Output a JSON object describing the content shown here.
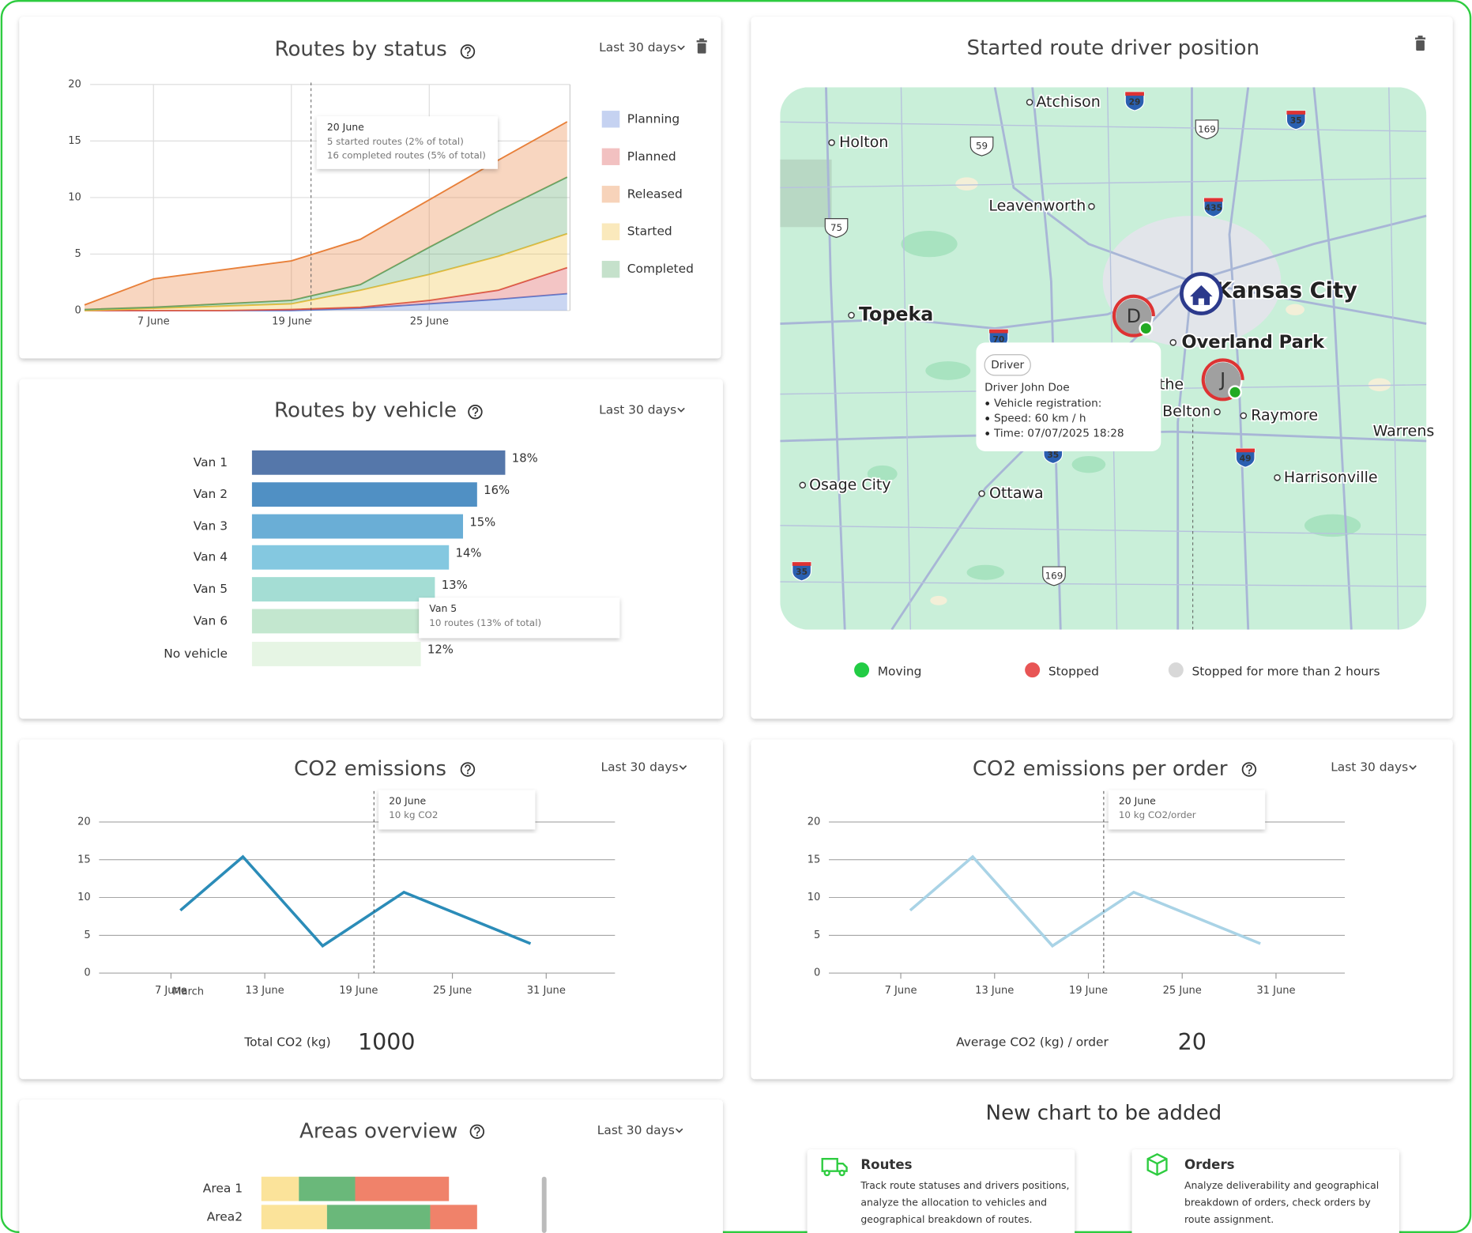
{
  "routes_by_status": {
    "title": "Routes by status",
    "period": "Last 30 days",
    "chart": {
      "type": "area",
      "stacked": true,
      "categories": [
        null,
        "7 June",
        null,
        "19 June",
        null,
        "25 June",
        null,
        null
      ],
      "series": [
        {
          "name": "Planning",
          "color": "#5a7fd6",
          "values": [
            0,
            0,
            0,
            0,
            0.2,
            0.6,
            1.0,
            1.5
          ]
        },
        {
          "name": "Planned",
          "color": "#d94c4c",
          "values": [
            0,
            0,
            0,
            0.1,
            0.1,
            0.3,
            0.8,
            2.3
          ]
        },
        {
          "name": "Released",
          "color": "#e8803a",
          "values": [
            0.4,
            2.5,
            3.0,
            3.5,
            4.0,
            4.2,
            4.5,
            4.9
          ]
        },
        {
          "name": "Started",
          "color": "#f0c040",
          "values": [
            0,
            0.2,
            0.4,
            0.5,
            1.5,
            2.3,
            3.0,
            3.0
          ]
        },
        {
          "name": "Completed",
          "color": "#5aa86a",
          "values": [
            0.1,
            0.1,
            0.2,
            0.3,
            0.5,
            2.4,
            4.0,
            5.0
          ]
        }
      ],
      "ylim": [
        0,
        20
      ],
      "yticks": [
        0,
        5,
        10,
        15,
        20
      ],
      "grid": true,
      "tooltip": {
        "title": "20 June",
        "lines": [
          "5 started routes (2% of total)",
          "16 completed routes (5% of total)"
        ]
      }
    }
  },
  "routes_by_vehicle": {
    "title": "Routes by vehicle",
    "period": "Last 30 days",
    "chart": {
      "type": "hbar",
      "categories": [
        "Van 1",
        "Van 2",
        "Van 3",
        "Van 4",
        "Van 5",
        "Van 6",
        "No vehicle"
      ],
      "values": [
        18,
        16,
        15,
        14,
        13,
        13,
        12
      ],
      "value_labels": [
        "18%",
        "16%",
        "15%",
        "14%",
        "13%",
        null,
        "12%"
      ],
      "colors": [
        "#5577aa",
        "#5090c4",
        "#6aaed6",
        "#84c8e0",
        "#a4ddd4",
        "#c3e7cf",
        "#e6f5e4"
      ],
      "tooltip": {
        "title": "Van 5",
        "lines": [
          "10 routes (13% of total)"
        ]
      }
    }
  },
  "driver_position": {
    "title": "Started route driver position",
    "map": {
      "places": [
        "Atchison",
        "Holton",
        "Leavenworth",
        "Topeka",
        "Kansas City",
        "Overland Park",
        "the",
        "Belton",
        "Raymore",
        "Warrens",
        "Harrisonville",
        "Osage City",
        "Ottawa"
      ],
      "shields": [
        "29",
        "169",
        "35",
        "59",
        "435",
        "75",
        "70",
        "35",
        "49",
        "35",
        "169"
      ]
    },
    "markers": [
      {
        "initial": "D"
      },
      {
        "initial": "J"
      }
    ],
    "popup": {
      "tag": "Driver",
      "name": "Driver John Doe",
      "details": [
        "Vehicle registration:",
        "Speed: 60 km / h",
        "Time: 07/07/2025 18:28"
      ]
    },
    "legend": [
      {
        "label": "Moving",
        "color": "#22cc44"
      },
      {
        "label": "Stopped",
        "color": "#e85555"
      },
      {
        "label": "Stopped for more than 2 hours",
        "color": "#d8d8d8"
      }
    ]
  },
  "co2_emissions": {
    "title": "CO2 emissions",
    "period": "Last 30 days",
    "chart": {
      "type": "line",
      "color": "#2b8cb8",
      "x": [
        7.6,
        11.6,
        16.7,
        21.9,
        30.0
      ],
      "values": [
        8.3,
        15.4,
        3.6,
        10.7,
        3.9
      ],
      "xlim": [
        2.4,
        35.4
      ],
      "xticks": [
        {
          "value": 7,
          "label": "7 June"
        },
        {
          "value": 13,
          "label": "13 June"
        },
        {
          "value": 19,
          "label": "19 June"
        },
        {
          "value": 25,
          "label": "25 June"
        },
        {
          "value": 31,
          "label": "31 June"
        }
      ],
      "extra_tick_label": "March",
      "ylim": [
        0,
        20
      ],
      "yticks": [
        0,
        5,
        10,
        15,
        20
      ],
      "grid": true,
      "tooltip": {
        "title": "20 June",
        "lines": [
          "10 kg CO2"
        ]
      }
    },
    "summary": {
      "label": "Total CO2 (kg)",
      "value": 1000
    }
  },
  "co2_per_order": {
    "title": "CO2 emissions per order",
    "period": "Last 30 days",
    "chart": {
      "type": "line",
      "color": "#a9d3e6",
      "x": [
        7.6,
        11.6,
        16.7,
        21.9,
        30.0
      ],
      "values": [
        8.3,
        15.4,
        3.6,
        10.7,
        3.9
      ],
      "xlim": [
        2.4,
        35.4
      ],
      "xticks": [
        {
          "value": 7,
          "label": "7 June"
        },
        {
          "value": 13,
          "label": "13 June"
        },
        {
          "value": 19,
          "label": "19 June"
        },
        {
          "value": 25,
          "label": "25 June"
        },
        {
          "value": 31,
          "label": "31 June"
        }
      ],
      "ylim": [
        0,
        20
      ],
      "yticks": [
        0,
        5,
        10,
        15,
        20
      ],
      "grid": true,
      "tooltip": {
        "title": "20 June",
        "lines": [
          "10 kg CO2/order"
        ]
      }
    },
    "summary": {
      "label": "Average CO2 (kg) / order",
      "value": 20
    }
  },
  "areas_overview": {
    "title": "Areas overview",
    "period": "Last 30 days",
    "chart": {
      "type": "stacked_hbar",
      "categories": [
        "Area 1",
        "Area2"
      ],
      "series": [
        {
          "color": "#fbe39a",
          "values": [
            4,
            7
          ]
        },
        {
          "color": "#6ab87a",
          "values": [
            6,
            11
          ]
        },
        {
          "color": "#f0826a",
          "values": [
            10,
            5
          ]
        }
      ]
    }
  },
  "new_chart": {
    "title": "New chart to be added",
    "cards": [
      {
        "title": "Routes",
        "description": [
          "Track route statuses and drivers positions,",
          "analyze the allocation to vehicles and",
          "geographical breakdown of routes."
        ]
      },
      {
        "title": "Orders",
        "description": [
          "Analyze deliverability and geographical",
          "breakdown of orders, check orders by",
          "route assignment."
        ]
      }
    ]
  }
}
